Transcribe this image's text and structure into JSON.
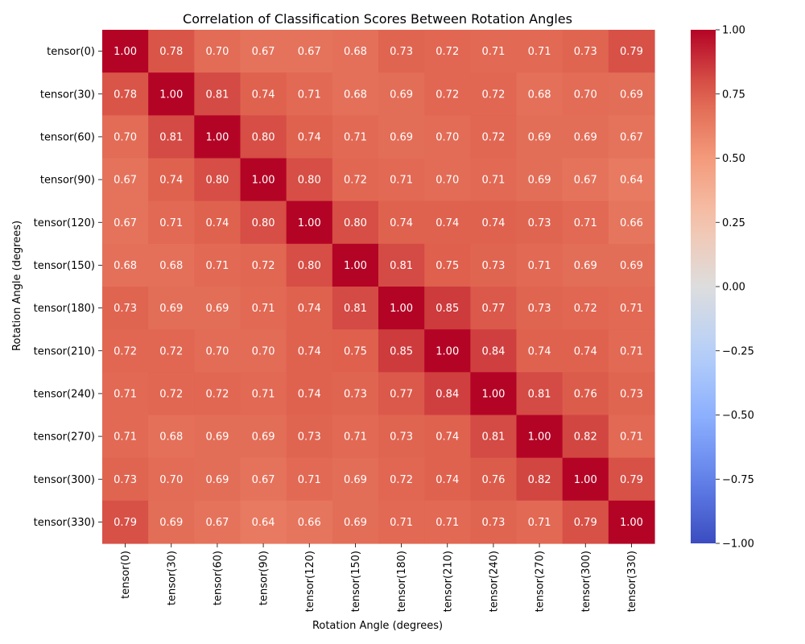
{
  "chart_data": {
    "type": "heatmap",
    "title": "Correlation of Classification Scores Between Rotation Angles",
    "xlabel": "Rotation Angle (degrees)",
    "ylabel": "Rotation Angle (degrees)",
    "categories": [
      "tensor(0)",
      "tensor(30)",
      "tensor(60)",
      "tensor(90)",
      "tensor(120)",
      "tensor(150)",
      "tensor(180)",
      "tensor(210)",
      "tensor(240)",
      "tensor(270)",
      "tensor(300)",
      "tensor(330)"
    ],
    "values": [
      [
        1.0,
        0.78,
        0.7,
        0.67,
        0.67,
        0.68,
        0.73,
        0.72,
        0.71,
        0.71,
        0.73,
        0.79
      ],
      [
        0.78,
        1.0,
        0.81,
        0.74,
        0.71,
        0.68,
        0.69,
        0.72,
        0.72,
        0.68,
        0.7,
        0.69
      ],
      [
        0.7,
        0.81,
        1.0,
        0.8,
        0.74,
        0.71,
        0.69,
        0.7,
        0.72,
        0.69,
        0.69,
        0.67
      ],
      [
        0.67,
        0.74,
        0.8,
        1.0,
        0.8,
        0.72,
        0.71,
        0.7,
        0.71,
        0.69,
        0.67,
        0.64
      ],
      [
        0.67,
        0.71,
        0.74,
        0.8,
        1.0,
        0.8,
        0.74,
        0.74,
        0.74,
        0.73,
        0.71,
        0.66
      ],
      [
        0.68,
        0.68,
        0.71,
        0.72,
        0.8,
        1.0,
        0.81,
        0.75,
        0.73,
        0.71,
        0.69,
        0.69
      ],
      [
        0.73,
        0.69,
        0.69,
        0.71,
        0.74,
        0.81,
        1.0,
        0.85,
        0.77,
        0.73,
        0.72,
        0.71
      ],
      [
        0.72,
        0.72,
        0.7,
        0.7,
        0.74,
        0.75,
        0.85,
        1.0,
        0.84,
        0.74,
        0.74,
        0.71
      ],
      [
        0.71,
        0.72,
        0.72,
        0.71,
        0.74,
        0.73,
        0.77,
        0.84,
        1.0,
        0.81,
        0.76,
        0.73
      ],
      [
        0.71,
        0.68,
        0.69,
        0.69,
        0.73,
        0.71,
        0.73,
        0.74,
        0.81,
        1.0,
        0.82,
        0.71
      ],
      [
        0.73,
        0.7,
        0.69,
        0.67,
        0.71,
        0.69,
        0.72,
        0.74,
        0.76,
        0.82,
        1.0,
        0.79
      ],
      [
        0.79,
        0.69,
        0.67,
        0.64,
        0.66,
        0.69,
        0.71,
        0.71,
        0.73,
        0.71,
        0.79,
        1.0
      ]
    ],
    "colormap": "coolwarm",
    "vmin": -1.0,
    "vmax": 1.0,
    "colorbar_ticks": [
      1.0,
      0.75,
      0.5,
      0.25,
      0.0,
      -0.25,
      -0.5,
      -0.75,
      -1.0
    ],
    "colorbar_tick_labels": [
      "1.00",
      "0.75",
      "0.50",
      "0.25",
      "0.00",
      "−0.25",
      "−0.50",
      "−0.75",
      "−1.00"
    ],
    "annotation_format": "2 decimals"
  }
}
